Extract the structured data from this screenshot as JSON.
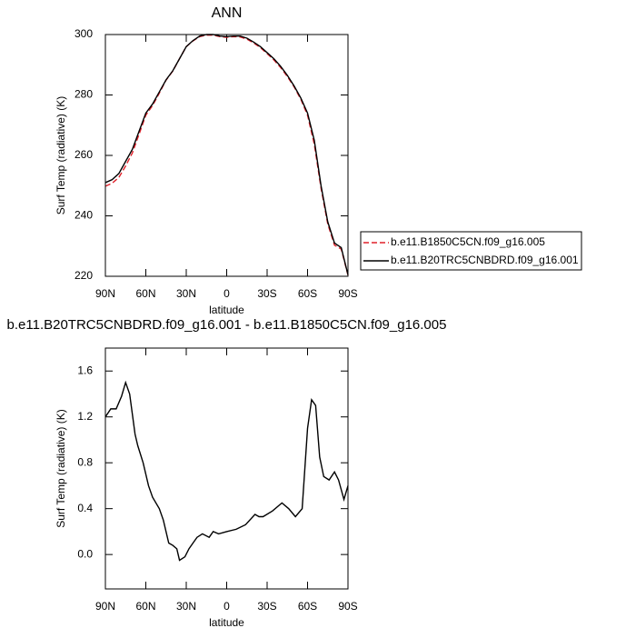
{
  "chart_data": [
    {
      "type": "line",
      "title": "ANN",
      "x_label": "latitude",
      "y_label": "Surf Temp (radiative) (K)",
      "x": [
        90,
        85,
        80,
        75,
        70,
        65,
        60,
        55,
        50,
        45,
        40,
        35,
        30,
        25,
        20,
        15,
        10,
        5,
        0,
        -5,
        -10,
        -15,
        -20,
        -25,
        -30,
        -35,
        -40,
        -45,
        -50,
        -55,
        -60,
        -65,
        -70,
        -75,
        -80,
        -85,
        -90
      ],
      "series": [
        {
          "name": "b.e11.B1850C5CN.f09_g16.005",
          "color": "#e0202a",
          "line_style": "dashed",
          "values": [
            249.8,
            250.8,
            252.7,
            256.5,
            260.8,
            267,
            273.3,
            276.5,
            280.6,
            284.9,
            287.9,
            292,
            296,
            297.9,
            299.3,
            299.8,
            299.8,
            299.3,
            299.1,
            299.3,
            299.2,
            298.5,
            297.2,
            295.7,
            293.7,
            291.6,
            289.1,
            286.1,
            282.7,
            278.6,
            273.3,
            263.7,
            249.2,
            237.3,
            230.3,
            229,
            220.4
          ]
        },
        {
          "name": "b.e11.B20TRC5CNBDRD.f09_g16.001",
          "color": "#000000",
          "line_style": "solid",
          "values": [
            251,
            252,
            254,
            258,
            262,
            268,
            274,
            277,
            281,
            285,
            288,
            292,
            296,
            298,
            299.5,
            300,
            300,
            299.5,
            299.3,
            299.5,
            299.5,
            298.8,
            297.5,
            296,
            294,
            292,
            289.5,
            286.5,
            283,
            279,
            274,
            265,
            250,
            238,
            231,
            229.5,
            220.5
          ]
        }
      ],
      "xlim": [
        90,
        -90
      ],
      "xticks": [
        {
          "value": 90,
          "label": "90N"
        },
        {
          "value": 60,
          "label": "60N"
        },
        {
          "value": 30,
          "label": "30N"
        },
        0,
        {
          "value": -30,
          "label": "30S"
        },
        {
          "value": -60,
          "label": "60S"
        },
        {
          "value": -90,
          "label": "90S"
        }
      ],
      "ylim": [
        220,
        300
      ],
      "yticks": [
        220,
        240,
        260,
        280,
        300
      ],
      "legend": "right"
    },
    {
      "type": "line",
      "title": "b.e11.B20TRC5CNBDRD.f09_g16.001 - b.e11.B1850C5CN.f09_g16.005",
      "x_label": "latitude",
      "y_label": "Surf Temp (radiative) (K)",
      "x": [
        90,
        86,
        82,
        78,
        75,
        72,
        68,
        66,
        62,
        58,
        55,
        50,
        47,
        43,
        40,
        37,
        35,
        31,
        28,
        25,
        22,
        18,
        13,
        10,
        6,
        0,
        -7,
        -14,
        -21,
        -24,
        -27,
        -34,
        -41,
        -46,
        -51,
        -56,
        -60,
        -63,
        -66,
        -69,
        -72,
        -76,
        -80,
        -83,
        -87,
        -90
      ],
      "series": [
        {
          "color": "#000000",
          "line_style": "solid",
          "values": [
            1.2,
            1.27,
            1.27,
            1.38,
            1.5,
            1.4,
            1.05,
            0.95,
            0.8,
            0.6,
            0.5,
            0.4,
            0.3,
            0.1,
            0.08,
            0.05,
            -0.05,
            -0.02,
            0.05,
            0.1,
            0.15,
            0.18,
            0.15,
            0.2,
            0.18,
            0.2,
            0.22,
            0.26,
            0.35,
            0.33,
            0.33,
            0.38,
            0.45,
            0.4,
            0.33,
            0.4,
            1.1,
            1.35,
            1.3,
            0.85,
            0.68,
            0.65,
            0.72,
            0.65,
            0.48,
            0.6
          ]
        }
      ],
      "xlim": [
        90,
        -90
      ],
      "xticks": [
        {
          "value": 90,
          "label": "90N"
        },
        {
          "value": 60,
          "label": "60N"
        },
        {
          "value": 30,
          "label": "30N"
        },
        0,
        {
          "value": -30,
          "label": "30S"
        },
        {
          "value": -60,
          "label": "60S"
        },
        {
          "value": -90,
          "label": "90S"
        }
      ],
      "ylim": [
        -0.3,
        1.8
      ],
      "yticks": [
        {
          "value": 0,
          "label": "0.0"
        },
        0.4,
        0.8,
        1.2,
        1.6
      ]
    }
  ]
}
